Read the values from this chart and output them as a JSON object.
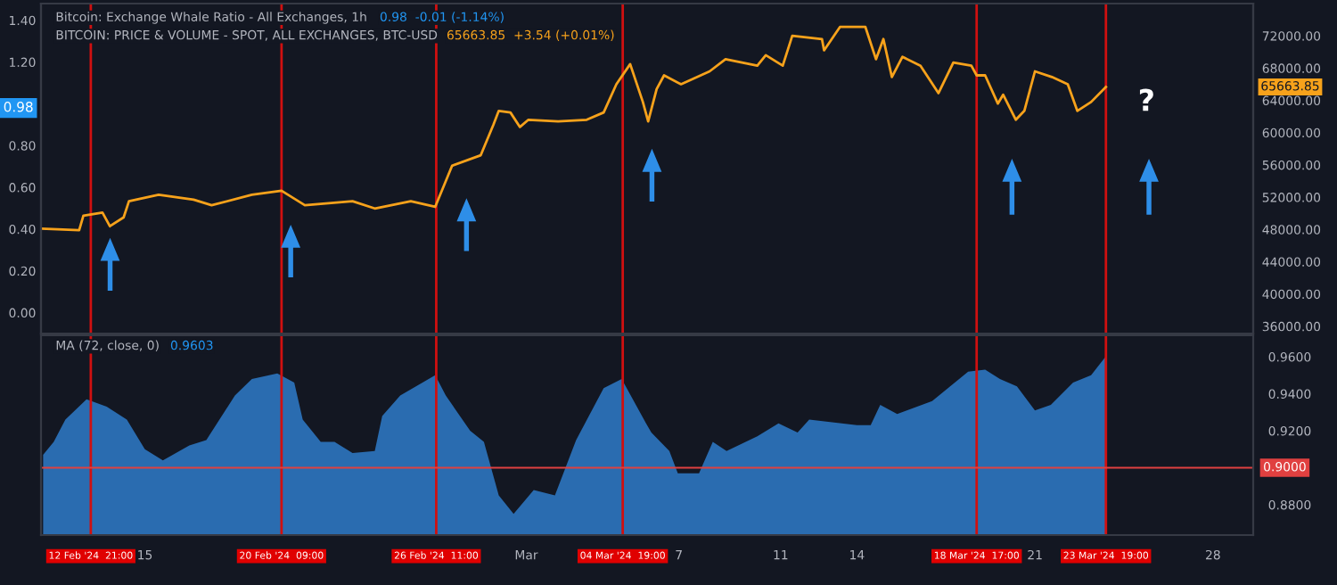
{
  "chart_data": [
    {
      "type": "line",
      "title": "Bitcoin: Exchange Whale Ratio - All Exchanges, 1h",
      "annotations": [
        "0.98  -0.01 (-1.14%)",
        "65663.85  +3.54 (+0.01%)",
        {
          "text": "0.98",
          "y": 0.98
        },
        "?",
        "65663.85"
      ],
      "xlim": [
        "2024-02-10T22:00",
        "2024-03-29T14:00"
      ],
      "ylim": [
        -0.1,
        1.48
      ],
      "yticks": [
        {
          "value": 0,
          "label": "0.00"
        },
        {
          "value": 0.2,
          "label": "0.20"
        },
        {
          "value": 0.4,
          "label": "0.40"
        },
        {
          "value": 0.6,
          "label": "0.60"
        },
        {
          "value": 0.8,
          "label": "0.80"
        },
        {
          "value": 1.2,
          "label": "1.20"
        },
        {
          "value": 1.4,
          "label": "1.40"
        }
      ],
      "y2lim": [
        35100,
        76000
      ],
      "y2ticks": [
        {
          "value": 36000,
          "label": "36000.00"
        },
        {
          "value": 40000,
          "label": "40000.00"
        },
        {
          "value": 44000,
          "label": "44000.00"
        },
        {
          "value": 48000,
          "label": "48000.00"
        },
        {
          "value": 52000,
          "label": "52000.00"
        },
        {
          "value": 56000,
          "label": "56000.00"
        },
        {
          "value": 60000,
          "label": "60000.00"
        },
        {
          "value": 64000,
          "label": "64000.00"
        },
        {
          "value": 68000,
          "label": "68000.00"
        },
        {
          "value": 72000,
          "label": "72000.00"
        }
      ],
      "tick_labels": "y",
      "grid": false,
      "legend": false,
      "ref_lines": [
        {
          "axis": "x",
          "value": "2024-02-12T21:00",
          "color": "#d01010"
        },
        {
          "axis": "x",
          "value": "2024-02-20T09:00",
          "color": "#d01010"
        },
        {
          "axis": "x",
          "value": "2024-02-26T11:00",
          "color": "#d01010"
        },
        {
          "axis": "x",
          "value": "2024-03-04T19:00",
          "color": "#d01010"
        },
        {
          "axis": "x",
          "value": "2024-03-18T17:00",
          "color": "#d01010"
        },
        {
          "axis": "x",
          "value": "2024-03-23T19:00",
          "color": "#d01010"
        }
      ],
      "series": [
        {
          "name": "BITCOIN: PRICE & VOLUME - SPOT, ALL EXCHANGES, BTC-USD",
          "color": "#f7a21b",
          "axis": "y2",
          "x": [
            "2024-02-10T22:00",
            "2024-02-12T10:00",
            "2024-02-12T14:00",
            "2024-02-13T08:00",
            "2024-02-13T15:00",
            "2024-02-14T04:00",
            "2024-02-14T09:00",
            "2024-02-15T13:00",
            "2024-02-16T22:00",
            "2024-02-17T15:00",
            "2024-02-19T05:00",
            "2024-02-20T09:00",
            "2024-02-21T07:00",
            "2024-02-23T04:00",
            "2024-02-24T01:00",
            "2024-02-25T11:00",
            "2024-02-26T10:00",
            "2024-02-27T02:00",
            "2024-02-28T05:00",
            "2024-02-28T17:00",
            "2024-02-28T22:00",
            "2024-02-29T09:00",
            "2024-02-29T18:00",
            "2024-03-01T02:00",
            "2024-03-02T06:00",
            "2024-03-03T09:00",
            "2024-03-04T01:00",
            "2024-03-04T13:00",
            "2024-03-05T02:00",
            "2024-03-05T14:00",
            "2024-03-05T19:00",
            "2024-03-06T03:00",
            "2024-03-06T10:00",
            "2024-03-07T02:00",
            "2024-03-08T05:00",
            "2024-03-08T20:00",
            "2024-03-10T02:00",
            "2024-03-10T10:00",
            "2024-03-11T02:00",
            "2024-03-11T11:00",
            "2024-03-12T15:00",
            "2024-03-12T17:00",
            "2024-03-13T08:00",
            "2024-03-14T08:00",
            "2024-03-14T18:00",
            "2024-03-15T01:00",
            "2024-03-15T09:00",
            "2024-03-15T19:00",
            "2024-03-16T12:00",
            "2024-03-17T05:00",
            "2024-03-17T19:00",
            "2024-03-18T12:00",
            "2024-03-18T17:00",
            "2024-03-19T01:00",
            "2024-03-19T13:00",
            "2024-03-19T18:00",
            "2024-03-20T06:00",
            "2024-03-20T14:00",
            "2024-03-21T00:00",
            "2024-03-21T16:00",
            "2024-03-22T07:00",
            "2024-03-22T16:00",
            "2024-03-23T05:00",
            "2024-03-23T19:00"
          ],
          "values": [
            48100,
            47900,
            49700,
            50100,
            48400,
            49500,
            51500,
            52300,
            51700,
            51000,
            52300,
            52800,
            51000,
            51500,
            50600,
            51500,
            50800,
            55900,
            57200,
            61000,
            62700,
            62500,
            60700,
            61600,
            61400,
            61600,
            62500,
            66000,
            68500,
            63800,
            61400,
            65400,
            67100,
            66000,
            67600,
            69100,
            68300,
            69600,
            68300,
            72000,
            71600,
            70200,
            73100,
            73100,
            69100,
            71600,
            66900,
            69400,
            68300,
            64900,
            68700,
            68300,
            67100,
            67100,
            63600,
            64700,
            61600,
            62700,
            67600,
            66900,
            66000,
            62700,
            63800,
            65663.85
          ]
        }
      ]
    },
    {
      "type": "area",
      "title": "MA (72, close, 0)",
      "annotations": [
        "0.9603"
      ],
      "xlim": [
        "2024-02-10T22:00",
        "2024-03-29T14:00"
      ],
      "xticks": [
        {
          "value": "2024-02-15",
          "label": "15"
        },
        {
          "value": "2024-03-01",
          "label": "Mar"
        },
        {
          "value": "2024-03-07",
          "label": "7"
        },
        {
          "value": "2024-03-11",
          "label": "11"
        },
        {
          "value": "2024-03-14",
          "label": "14"
        },
        {
          "value": "2024-03-21",
          "label": "21"
        },
        {
          "value": "2024-03-28",
          "label": "28"
        }
      ],
      "ylim": [
        0.8636,
        0.9716
      ],
      "yticks": [
        {
          "value": 0.88,
          "label": "0.8800"
        },
        {
          "value": 0.92,
          "label": "0.9200"
        },
        {
          "value": 0.94,
          "label": "0.9400"
        },
        {
          "value": 0.96,
          "label": "0.9600"
        }
      ],
      "grid": false,
      "legend": false,
      "ref_lines": [
        {
          "axis": "x",
          "value": "2024-02-12T21:00",
          "label": "12 Feb '24  21:00",
          "color": "#d01010"
        },
        {
          "axis": "x",
          "value": "2024-02-20T09:00",
          "label": "20 Feb '24  09:00",
          "color": "#d01010"
        },
        {
          "axis": "x",
          "value": "2024-02-26T11:00",
          "label": "26 Feb '24  11:00",
          "color": "#d01010"
        },
        {
          "axis": "x",
          "value": "2024-03-04T19:00",
          "label": "04 Mar '24  19:00",
          "color": "#d01010"
        },
        {
          "axis": "x",
          "value": "2024-03-18T17:00",
          "label": "18 Mar '24  17:00",
          "color": "#d01010"
        },
        {
          "axis": "x",
          "value": "2024-03-23T19:00",
          "label": "23 Mar '24  19:00",
          "color": "#d01010"
        },
        {
          "axis": "y",
          "value": 0.9,
          "label": "0.9000",
          "color": "#e04040"
        }
      ],
      "series": [
        {
          "color": "#2a6cb0",
          "x": [
            "2024-02-11T00:00",
            "2024-02-11T10:00",
            "2024-02-11T21:00",
            "2024-02-12T17:00",
            "2024-02-13T12:00",
            "2024-02-14T07:00",
            "2024-02-15T00:00",
            "2024-02-15T17:00",
            "2024-02-16T18:00",
            "2024-02-17T10:00",
            "2024-02-18T13:00",
            "2024-02-19T05:00",
            "2024-02-20T05:00",
            "2024-02-20T21:00",
            "2024-02-21T05:00",
            "2024-02-21T22:00",
            "2024-02-22T11:00",
            "2024-02-23T04:00",
            "2024-02-24T01:00",
            "2024-02-24T08:00",
            "2024-02-25T01:00",
            "2024-02-26T10:00",
            "2024-02-26T20:00",
            "2024-02-27T19:00",
            "2024-02-28T08:00",
            "2024-02-28T22:00",
            "2024-02-29T12:00",
            "2024-03-01T07:00",
            "2024-03-02T03:00",
            "2024-03-02T23:00",
            "2024-03-04T01:00",
            "2024-03-04T18:00",
            "2024-03-05T17:00",
            "2024-03-05T22:00",
            "2024-03-06T15:00",
            "2024-03-06T23:00",
            "2024-03-07T19:00",
            "2024-03-08T08:00",
            "2024-03-08T21:00",
            "2024-03-10T02:00",
            "2024-03-10T22:00",
            "2024-03-11T16:00",
            "2024-03-12T03:00",
            "2024-03-14T00:00",
            "2024-03-14T13:00",
            "2024-03-14T22:00",
            "2024-03-15T14:00",
            "2024-03-16T23:00",
            "2024-03-18T09:00",
            "2024-03-19T01:00",
            "2024-03-19T15:00",
            "2024-03-20T07:00",
            "2024-03-21T00:00",
            "2024-03-21T15:00",
            "2024-03-22T12:00",
            "2024-03-23T05:00",
            "2024-03-23T19:00"
          ],
          "values": [
            0.907,
            0.914,
            0.926,
            0.937,
            0.933,
            0.926,
            0.91,
            0.904,
            0.912,
            0.915,
            0.939,
            0.948,
            0.951,
            0.946,
            0.926,
            0.914,
            0.914,
            0.908,
            0.909,
            0.928,
            0.939,
            0.95,
            0.939,
            0.92,
            0.914,
            0.885,
            0.875,
            0.888,
            0.885,
            0.915,
            0.943,
            0.948,
            0.924,
            0.919,
            0.909,
            0.897,
            0.897,
            0.914,
            0.909,
            0.917,
            0.924,
            0.919,
            0.926,
            0.923,
            0.923,
            0.934,
            0.929,
            0.936,
            0.952,
            0.953,
            0.948,
            0.944,
            0.931,
            0.934,
            0.946,
            0.95,
            0.9603
          ]
        }
      ]
    }
  ]
}
